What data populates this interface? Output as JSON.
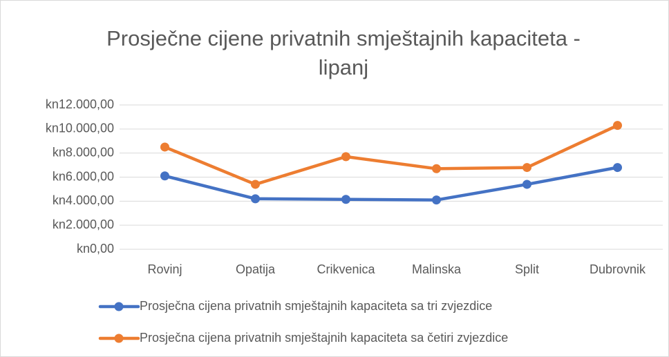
{
  "chart_data": {
    "type": "line",
    "title": "Prosječne cijene privatnih smještajnih kapaciteta - lipanj",
    "title_lines": [
      "Prosječne cijene privatnih smještajnih kapaciteta -",
      "lipanj"
    ],
    "categories": [
      "Rovinj",
      "Opatija",
      "Crikvenica",
      "Malinska",
      "Split",
      "Dubrovnik"
    ],
    "series": [
      {
        "name": "Prosječna cijena privatnih smještajnih kapaciteta sa tri zvjezdice",
        "color": "#4472c4",
        "values": [
          6100,
          4200,
          4150,
          4100,
          5400,
          6800
        ]
      },
      {
        "name": "Prosječna cijena privatnih smještajnih kapaciteta sa četiri zvjezdice",
        "color": "#ed7d31",
        "values": [
          8500,
          5400,
          7700,
          6700,
          6800,
          10300
        ]
      }
    ],
    "ylim": [
      0,
      12000
    ],
    "yticks": [
      {
        "value": 0,
        "label": "kn0,00"
      },
      {
        "value": 2000,
        "label": "kn2.000,00"
      },
      {
        "value": 4000,
        "label": "kn4.000,00"
      },
      {
        "value": 6000,
        "label": "kn6.000,00"
      },
      {
        "value": 8000,
        "label": "kn8.000,00"
      },
      {
        "value": 10000,
        "label": "kn10.000,00"
      },
      {
        "value": 12000,
        "label": "kn12.000,00"
      }
    ],
    "grid": true,
    "legend": "bottom"
  }
}
